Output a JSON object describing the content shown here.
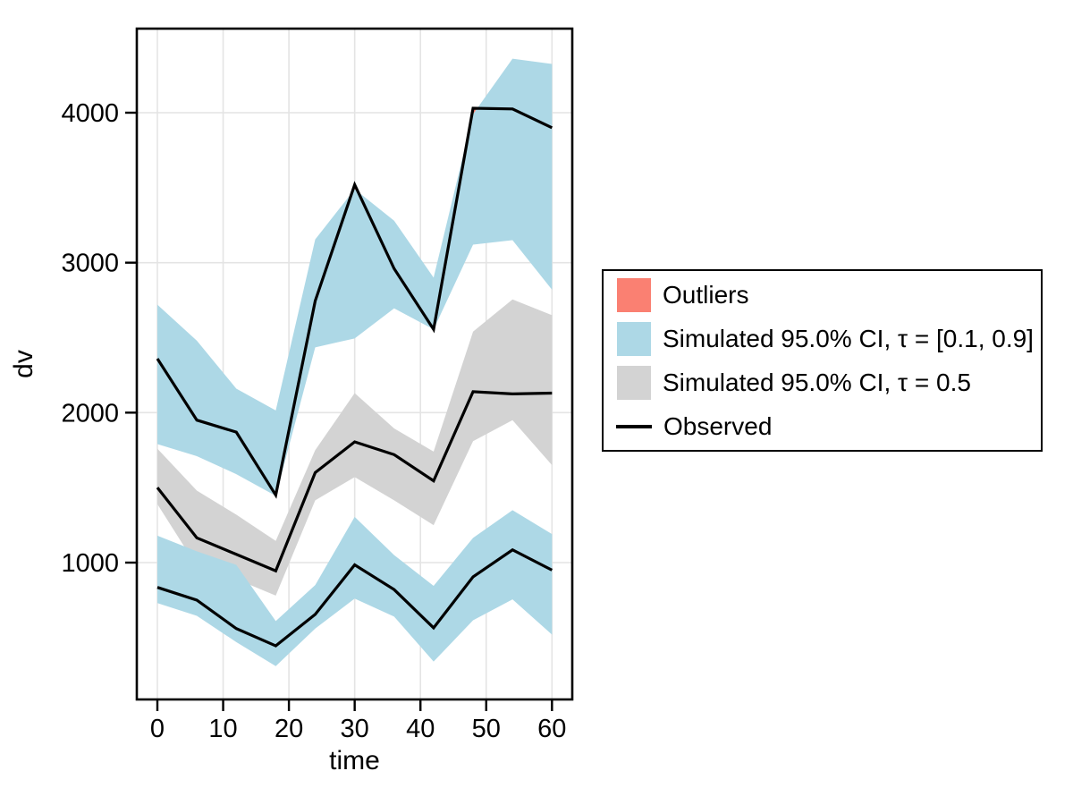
{
  "figure": {
    "background": "#ffffff"
  },
  "chart_data": {
    "type": "line",
    "title": "",
    "xlabel": "time",
    "ylabel": "dv",
    "x_ticks": [
      0,
      10,
      20,
      30,
      40,
      50,
      60
    ],
    "y_ticks": [
      1000,
      2000,
      3000,
      4000
    ],
    "xlim": [
      -3.1,
      63.1
    ],
    "ylim": [
      88,
      4560
    ],
    "grid": true,
    "legend_position": "right-outside",
    "x": [
      0,
      6,
      12,
      18,
      24,
      30,
      36,
      42,
      48,
      54,
      60
    ],
    "series": [
      {
        "name": "observed-90th",
        "values": [
          2360,
          1950,
          1870,
          1450,
          2745,
          3520,
          2960,
          2555,
          4030,
          4025,
          3900
        ]
      },
      {
        "name": "observed-median",
        "values": [
          1500,
          1165,
          1055,
          945,
          1600,
          1805,
          1720,
          1545,
          2140,
          2125,
          2130
        ]
      },
      {
        "name": "observed-10th",
        "values": [
          835,
          750,
          560,
          445,
          655,
          985,
          820,
          565,
          905,
          1085,
          950
        ]
      }
    ],
    "bands": [
      {
        "name": "simulated-ci-90th",
        "color": "#ADD8E6",
        "upper": [
          2720,
          2480,
          2160,
          2015,
          3155,
          3490,
          3280,
          2900,
          3990,
          4360,
          4325
        ],
        "lower": [
          1790,
          1710,
          1590,
          1445,
          2435,
          2495,
          2695,
          2555,
          3120,
          3150,
          2820
        ]
      },
      {
        "name": "simulated-ci-median",
        "color": "#D3D3D3",
        "upper": [
          1760,
          1480,
          1320,
          1145,
          1750,
          2130,
          1895,
          1740,
          2540,
          2755,
          2650
        ],
        "lower": [
          1390,
          975,
          890,
          780,
          1415,
          1570,
          1415,
          1250,
          1810,
          1950,
          1650
        ]
      },
      {
        "name": "simulated-ci-10th",
        "color": "#ADD8E6",
        "upper": [
          1180,
          1075,
          985,
          610,
          850,
          1305,
          1050,
          845,
          1165,
          1350,
          1190
        ],
        "lower": [
          730,
          645,
          470,
          310,
          560,
          760,
          640,
          340,
          615,
          755,
          520
        ]
      }
    ],
    "colors": {
      "outlier": "#FA8072",
      "ci_outer": "#ADD8E6",
      "ci_median": "#D3D3D3",
      "observed_line": "#000000",
      "grid": "#E4E4E4",
      "axis": "#000000"
    },
    "legend": [
      {
        "swatch": "fill",
        "color": "#FA8072",
        "label": "Outliers"
      },
      {
        "swatch": "fill",
        "color": "#ADD8E6",
        "label": "Simulated 95.0% CI, τ = [0.1, 0.9]"
      },
      {
        "swatch": "fill",
        "color": "#D3D3D3",
        "label": "Simulated 95.0% CI, τ = 0.5"
      },
      {
        "swatch": "line",
        "color": "#000000",
        "label": "Observed"
      }
    ]
  }
}
